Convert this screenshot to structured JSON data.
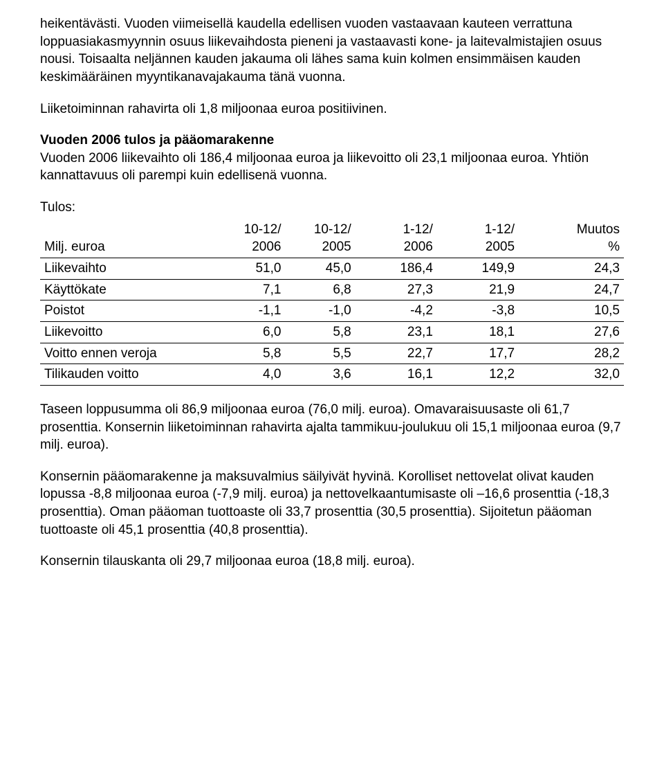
{
  "paragraphs": {
    "p1": "heikentävästi. Vuoden viimeisellä kaudella edellisen vuoden vastaavaan kauteen verrattuna loppuasiakasmyynnin osuus liikevaihdosta pieneni ja vastaavasti kone- ja laitevalmistajien osuus nousi. Toisaalta neljännen kauden jakauma oli lähes sama kuin kolmen ensimmäisen kauden keskimääräinen myyntikanavajakauma tänä vuonna.",
    "p2": "Liiketoiminnan rahavirta oli 1,8 miljoonaa euroa positiivinen.",
    "p3_heading": "Vuoden 2006 tulos ja pääomarakenne",
    "p3_body": "Vuoden 2006 liikevaihto oli 186,4 miljoonaa euroa ja liikevoitto oli 23,1 miljoonaa euroa. Yhtiön kannattavuus oli parempi kuin edellisenä vuonna.",
    "tulos_label": "Tulos:",
    "p4": "Taseen loppusumma oli 86,9 miljoonaa euroa (76,0 milj. euroa). Omavaraisuusaste oli 61,7 prosenttia. Konsernin liiketoiminnan rahavirta ajalta tammikuu-joulukuu oli 15,1 miljoonaa euroa (9,7 milj. euroa).",
    "p5": "Konsernin pääomarakenne ja maksuvalmius säilyivät hyvinä. Korolliset nettovelat olivat kauden lopussa -8,8 miljoonaa euroa (-7,9 milj. euroa) ja nettovelkaantumisaste oli –16,6 prosenttia (-18,3 prosenttia). Oman pääoman tuottoaste oli 33,7 prosenttia (30,5 prosenttia). Sijoitetun pääoman tuottoaste oli 45,1 prosenttia (40,8 prosenttia).",
    "p6": "Konsernin tilauskanta oli 29,7 miljoonaa euroa (18,8 milj. euroa)."
  },
  "table": {
    "header_label": "Milj. euroa",
    "columns": [
      "10-12/ 2006",
      "10-12/ 2005",
      "1-12/ 2006",
      "1-12/ 2005",
      "Muutos %"
    ],
    "rows": [
      {
        "label": "Liikevaihto",
        "c": [
          "51,0",
          "45,0",
          "186,4",
          "149,9",
          "24,3"
        ]
      },
      {
        "label": "Käyttökate",
        "c": [
          "7,1",
          "6,8",
          "27,3",
          "21,9",
          "24,7"
        ]
      },
      {
        "label": "Poistot",
        "c": [
          "-1,1",
          "-1,0",
          "-4,2",
          "-3,8",
          "10,5"
        ]
      },
      {
        "label": "Liikevoitto",
        "c": [
          "6,0",
          "5,8",
          "23,1",
          "18,1",
          "27,6"
        ]
      },
      {
        "label": "Voitto ennen veroja",
        "c": [
          "5,8",
          "5,5",
          "22,7",
          "17,7",
          "28,2"
        ]
      },
      {
        "label": "Tilikauden voitto",
        "c": [
          "4,0",
          "3,6",
          "16,1",
          "12,2",
          "32,0"
        ]
      }
    ],
    "col_widths_pct": [
      30,
      12,
      12,
      14,
      14,
      18
    ]
  },
  "colors": {
    "text": "#000000",
    "background": "#ffffff",
    "border": "#000000"
  },
  "typography": {
    "font_family": "Arial",
    "body_fontsize_pt": 14,
    "line_height": 1.35,
    "heading_weight": "bold"
  }
}
